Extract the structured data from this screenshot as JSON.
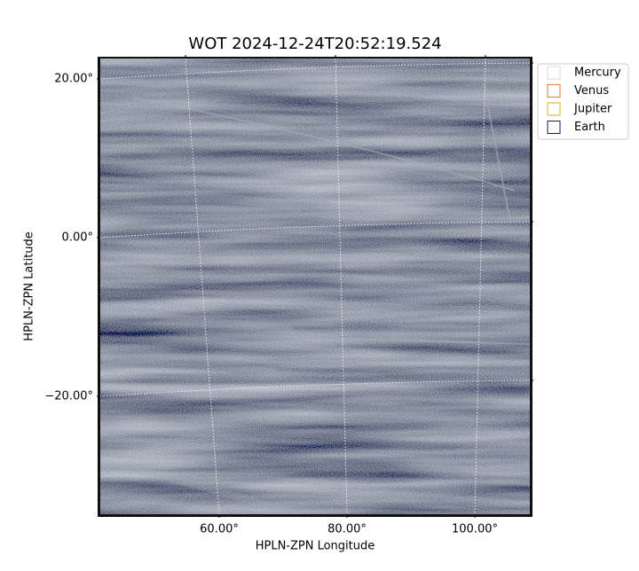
{
  "chart_data": {
    "type": "image",
    "title": "WOT 2024-12-24T20:52:19.524",
    "x_label": "HPLN-ZPN Longitude",
    "y_label": "HPLN-ZPN Latitude",
    "xticks": [
      {
        "value": 60,
        "label": "60.00°"
      },
      {
        "value": 80,
        "label": "80.00°"
      },
      {
        "value": 100,
        "label": "100.00°"
      }
    ],
    "yticks": [
      {
        "value": 20,
        "label": "20.00°"
      },
      {
        "value": 0,
        "label": "0.00°"
      },
      {
        "value": -20,
        "label": "−20.00°"
      }
    ],
    "grid": true,
    "legend_position": "outside-upper-right",
    "series": [
      {
        "name": "Mercury",
        "color": "#d9d9d9"
      },
      {
        "name": "Venus",
        "color": "#e07b39"
      },
      {
        "name": "Jupiter",
        "color": "#e0a820"
      },
      {
        "name": "Earth",
        "color": "#1a1a6e"
      }
    ]
  }
}
